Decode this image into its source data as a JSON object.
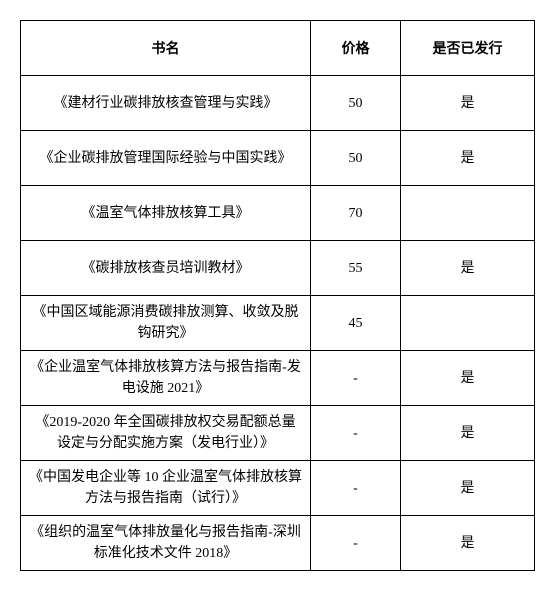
{
  "table": {
    "columns": [
      "书名",
      "价格",
      "是否已发行"
    ],
    "rows": [
      {
        "title": "《建材行业碳排放核查管理与实践》",
        "price": "50",
        "issued": "是"
      },
      {
        "title": "《企业碳排放管理国际经验与中国实践》",
        "price": "50",
        "issued": "是"
      },
      {
        "title": "《温室气体排放核算工具》",
        "price": "70",
        "issued": ""
      },
      {
        "title": "《碳排放核查员培训教材》",
        "price": "55",
        "issued": "是"
      },
      {
        "title": "《中国区域能源消费碳排放测算、收敛及脱钩研究》",
        "price": "45",
        "issued": ""
      },
      {
        "title": "《企业温室气体排放核算方法与报告指南-发电设施 2021》",
        "price": "-",
        "issued": "是"
      },
      {
        "title": "《2019-2020 年全国碳排放权交易配额总量设定与分配实施方案（发电行业）》",
        "price": "-",
        "issued": "是"
      },
      {
        "title": "《中国发电企业等 10 企业温室气体排放核算方法与报告指南（试行）》",
        "price": "-",
        "issued": "是"
      },
      {
        "title": "《组织的温室气体排放量化与报告指南-深圳标准化技术文件 2018》",
        "price": "-",
        "issued": "是"
      }
    ]
  }
}
